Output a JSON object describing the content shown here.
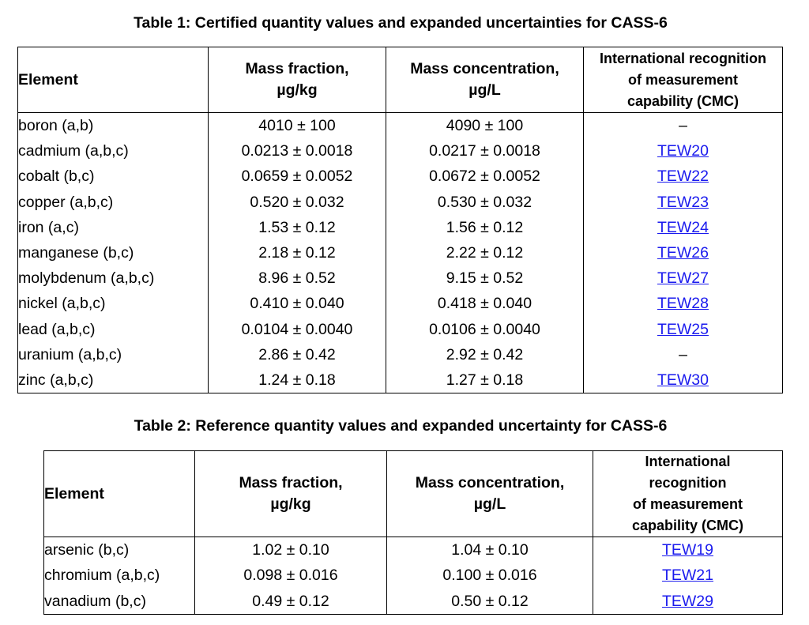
{
  "table1": {
    "title": "Table 1: Certified quantity values and expanded uncertainties for CASS-6",
    "headers": {
      "element": "Element",
      "mass_fraction": "Mass fraction,",
      "mass_fraction_unit": "µg/kg",
      "mass_conc": "Mass concentration,",
      "mass_conc_unit": "µg/L",
      "cmc_line1": "International recognition",
      "cmc_line2": "of measurement",
      "cmc_line3": "capability (CMC)"
    },
    "rows": [
      {
        "element": "boron (a,b)",
        "fraction": "4010 ± 100",
        "conc": "4090 ± 100",
        "cmc": "–",
        "link": false
      },
      {
        "element": "cadmium (a,b,c)",
        "fraction": "0.0213 ± 0.0018",
        "conc": "0.0217 ± 0.0018",
        "cmc": "TEW20",
        "link": true
      },
      {
        "element": "cobalt (b,c)",
        "fraction": "0.0659 ± 0.0052",
        "conc": "0.0672 ± 0.0052",
        "cmc": "TEW22",
        "link": true
      },
      {
        "element": "copper (a,b,c)",
        "fraction": "0.520 ± 0.032",
        "conc": "0.530 ± 0.032",
        "cmc": "TEW23",
        "link": true
      },
      {
        "element": "iron (a,c)",
        "fraction": "1.53 ± 0.12",
        "conc": "1.56 ± 0.12",
        "cmc": "TEW24",
        "link": true
      },
      {
        "element": "manganese (b,c)",
        "fraction": "2.18 ± 0.12",
        "conc": "2.22 ± 0.12",
        "cmc": "TEW26",
        "link": true
      },
      {
        "element": "molybdenum (a,b,c)",
        "fraction": "8.96 ± 0.52",
        "conc": "9.15 ± 0.52",
        "cmc": "TEW27",
        "link": true
      },
      {
        "element": "nickel (a,b,c)",
        "fraction": "0.410 ± 0.040",
        "conc": "0.418 ± 0.040",
        "cmc": "TEW28",
        "link": true
      },
      {
        "element": "lead (a,b,c)",
        "fraction": "0.0104 ± 0.0040",
        "conc": "0.0106 ± 0.0040",
        "cmc": "TEW25",
        "link": true
      },
      {
        "element": "uranium (a,b,c)",
        "fraction": "2.86 ± 0.42",
        "conc": "2.92 ± 0.42",
        "cmc": "–",
        "link": false
      },
      {
        "element": "zinc (a,b,c)",
        "fraction": "1.24 ± 0.18",
        "conc": "1.27 ± 0.18",
        "cmc": "TEW30",
        "link": true
      }
    ]
  },
  "table2": {
    "title": "Table 2: Reference quantity values and expanded uncertainty for CASS-6",
    "headers": {
      "element": "Element",
      "mass_fraction": "Mass fraction,",
      "mass_fraction_unit": "µg/kg",
      "mass_conc": "Mass concentration,",
      "mass_conc_unit": "µg/L",
      "cmc_line1": "International",
      "cmc_line2": "recognition",
      "cmc_line3": "of measurement",
      "cmc_line4": "capability (CMC)"
    },
    "rows": [
      {
        "element": "arsenic (b,c)",
        "fraction": "1.02 ± 0.10",
        "conc": "1.04 ± 0.10",
        "cmc": "TEW19",
        "link": true
      },
      {
        "element": "chromium (a,b,c)",
        "fraction": "0.098 ± 0.016",
        "conc": "0.100 ± 0.016",
        "cmc": "TEW21",
        "link": true
      },
      {
        "element": "vanadium (b,c)",
        "fraction": "0.49 ± 0.12",
        "conc": "0.50 ± 0.12",
        "cmc": "TEW29",
        "link": true
      }
    ]
  },
  "colors": {
    "link": "#1a1aee",
    "text": "#000000",
    "background": "#ffffff"
  }
}
